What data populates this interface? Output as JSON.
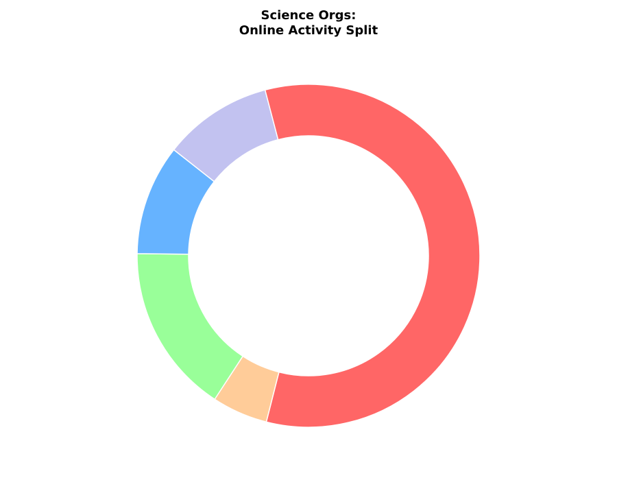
{
  "chart_data": {
    "type": "pie",
    "style": "donut",
    "title": [
      "Science Orgs:",
      "Online Activity Split"
    ],
    "start_angle_deg": 104.7,
    "direction": "clockwise",
    "slices": [
      {
        "value": 55.2,
        "color": "#ff6666"
      },
      {
        "value": 5.0,
        "color": "#ffcc99"
      },
      {
        "value": 15.2,
        "color": "#99ff99"
      },
      {
        "value": 9.9,
        "color": "#66b3ff"
      },
      {
        "value": 9.8,
        "color": "#c2c2f0"
      }
    ],
    "legend": "none",
    "labels_shown": false,
    "slice_edge_color": "#ffffff"
  }
}
